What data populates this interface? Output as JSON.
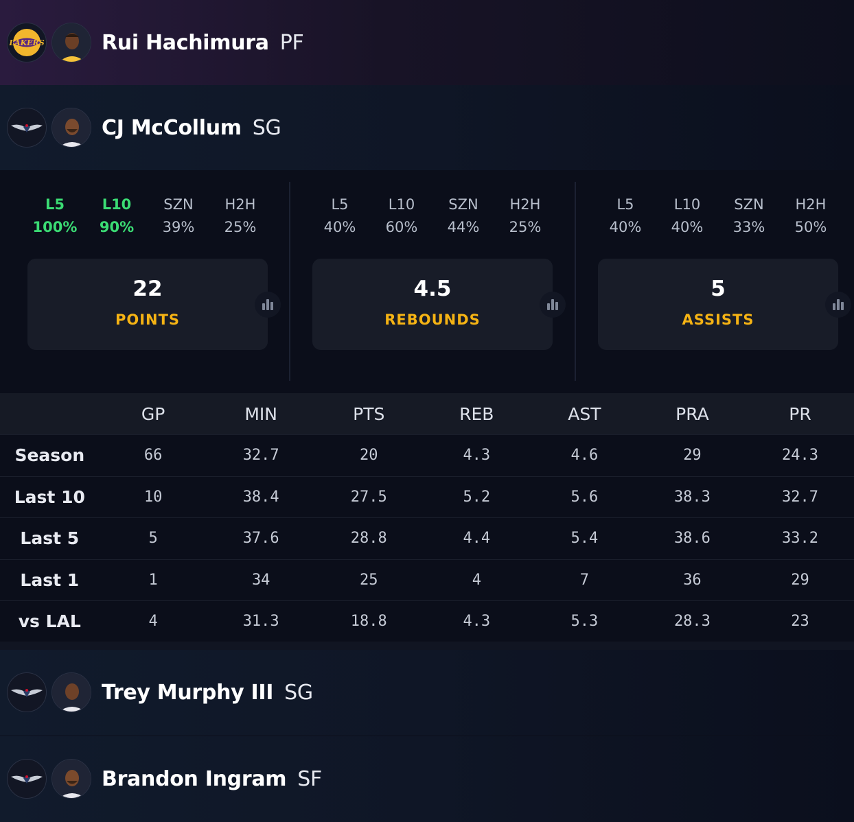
{
  "players_top": [
    {
      "name": "Rui Hachimura",
      "position": "PF",
      "team": "Lakers",
      "team_logo_text": "LAKERS"
    },
    {
      "name": "CJ McCollum",
      "position": "SG",
      "team": "Pelicans"
    }
  ],
  "props": [
    {
      "hits": [
        {
          "label": "L5",
          "value": "100%",
          "highlight": true
        },
        {
          "label": "L10",
          "value": "90%",
          "highlight": true
        },
        {
          "label": "SZN",
          "value": "39%",
          "highlight": false
        },
        {
          "label": "H2H",
          "value": "25%",
          "highlight": false
        }
      ],
      "line": "22",
      "stat": "POINTS"
    },
    {
      "hits": [
        {
          "label": "L5",
          "value": "40%",
          "highlight": false
        },
        {
          "label": "L10",
          "value": "60%",
          "highlight": false
        },
        {
          "label": "SZN",
          "value": "44%",
          "highlight": false
        },
        {
          "label": "H2H",
          "value": "25%",
          "highlight": false
        }
      ],
      "line": "4.5",
      "stat": "REBOUNDS"
    },
    {
      "hits": [
        {
          "label": "L5",
          "value": "40%",
          "highlight": false
        },
        {
          "label": "L10",
          "value": "40%",
          "highlight": false
        },
        {
          "label": "SZN",
          "value": "33%",
          "highlight": false
        },
        {
          "label": "H2H",
          "value": "50%",
          "highlight": false
        }
      ],
      "line": "5",
      "stat": "ASSISTS"
    }
  ],
  "stats_table": {
    "columns": [
      "GP",
      "MIN",
      "PTS",
      "REB",
      "AST",
      "PRA",
      "PR"
    ],
    "rows": [
      {
        "label": "Season",
        "values": [
          "66",
          "32.7",
          "20",
          "4.3",
          "4.6",
          "29",
          "24.3"
        ]
      },
      {
        "label": "Last 10",
        "values": [
          "10",
          "38.4",
          "27.5",
          "5.2",
          "5.6",
          "38.3",
          "32.7"
        ]
      },
      {
        "label": "Last 5",
        "values": [
          "5",
          "37.6",
          "28.8",
          "4.4",
          "5.4",
          "38.6",
          "33.2"
        ]
      },
      {
        "label": "Last 1",
        "values": [
          "1",
          "34",
          "25",
          "4",
          "7",
          "36",
          "29"
        ]
      },
      {
        "label": "vs LAL",
        "values": [
          "4",
          "31.3",
          "18.8",
          "4.3",
          "5.3",
          "28.3",
          "23"
        ]
      }
    ]
  },
  "players_bottom": [
    {
      "name": "Trey Murphy III",
      "position": "SG",
      "team": "Pelicans"
    },
    {
      "name": "Brandon Ingram",
      "position": "SF",
      "team": "Pelicans"
    }
  ],
  "colors": {
    "highlight_green": "#3bdc74",
    "stat_label_gold": "#f5b314",
    "background": "#0b0e1a"
  }
}
